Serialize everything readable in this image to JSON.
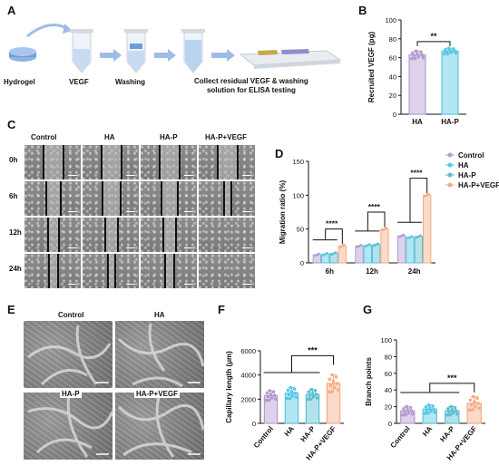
{
  "panels": {
    "A": "A",
    "B": "B",
    "C": "C",
    "D": "D",
    "E": "E",
    "F": "F",
    "G": "G"
  },
  "schematic": {
    "steps": [
      "Hydrogel",
      "VEGF",
      "Washing",
      "Collect residual VEGF & washing\nsolution for ELISA testing"
    ]
  },
  "colors": {
    "Control": "#b39bd1",
    "HA": "#57c8e3",
    "HA-P": "#5bbfd1",
    "HA-P+VEGF": "#f5ac84",
    "hydrogel": "#7aa7dc",
    "arrow": "#9ebde6"
  },
  "wound": {
    "columns": [
      "Control",
      "HA",
      "HA-P",
      "HA-P+VEGF"
    ],
    "rows": [
      "0h",
      "6h",
      "12h",
      "24h"
    ]
  },
  "tube": {
    "labels": [
      "Control",
      "HA",
      "HA-P",
      "HA-P+VEGF"
    ]
  },
  "chart_data": [
    {
      "panel": "B",
      "type": "bar",
      "categories": [
        "HA",
        "HA-P"
      ],
      "values": [
        63,
        67
      ],
      "error": [
        4,
        3
      ],
      "ylabel": "Recruited VEGF (pg)",
      "ylim": [
        0,
        100
      ],
      "yticks": [
        0,
        20,
        40,
        60,
        80,
        100
      ],
      "significance": "**"
    },
    {
      "panel": "D",
      "type": "bar",
      "categories": [
        "6h",
        "12h",
        "24h"
      ],
      "series": [
        {
          "name": "Control",
          "values": [
            12,
            25,
            40
          ]
        },
        {
          "name": "HA",
          "values": [
            13,
            26,
            38
          ]
        },
        {
          "name": "HA-P",
          "values": [
            14,
            27,
            39
          ]
        },
        {
          "name": "HA-P+VEGF",
          "values": [
            25,
            50,
            100
          ]
        }
      ],
      "ylabel": "Migration ratio (%)",
      "ylim": [
        0,
        150
      ],
      "yticks": [
        0,
        50,
        100,
        150
      ],
      "significance": [
        "****",
        "****",
        "****"
      ],
      "legend": "top-right"
    },
    {
      "panel": "F",
      "type": "bar",
      "categories": [
        "Control",
        "HA",
        "HA-P",
        "HA-P+VEGF"
      ],
      "values": [
        2300,
        2500,
        2400,
        3300
      ],
      "error": [
        400,
        450,
        400,
        700
      ],
      "ylabel": "Capillary length (μm)",
      "ylim": [
        0,
        6000
      ],
      "yticks": [
        0,
        2000,
        4000,
        6000
      ],
      "significance": "***"
    },
    {
      "panel": "G",
      "type": "bar",
      "categories": [
        "Control",
        "HA",
        "HA-P",
        "HA-P+VEGF"
      ],
      "values": [
        15,
        17,
        15,
        24
      ],
      "error": [
        5,
        5,
        5,
        8
      ],
      "ylabel": "Branch points",
      "ylim": [
        0,
        100
      ],
      "yticks": [
        0,
        20,
        40,
        60,
        80,
        100
      ],
      "significance": "***"
    }
  ]
}
